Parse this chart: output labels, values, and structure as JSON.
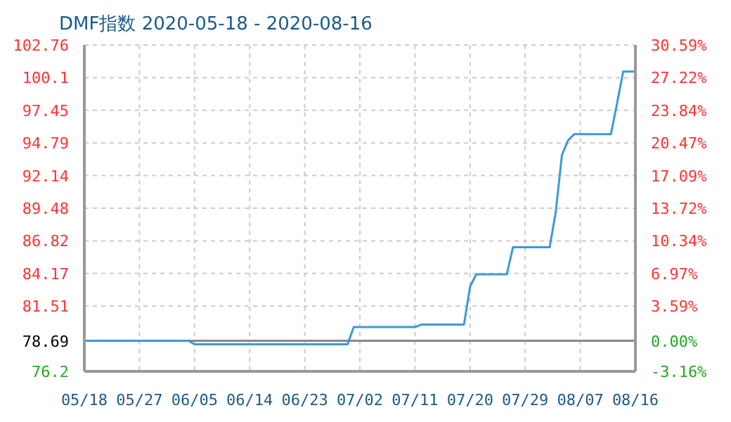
{
  "chart_data": {
    "type": "line",
    "title": "DMF指数 2020-05-18 - 2020-08-16",
    "x": [
      "2020-05-18",
      "2020-06-04",
      "2020-06-05",
      "2020-06-30",
      "2020-07-01",
      "2020-07-11",
      "2020-07-12",
      "2020-07-19",
      "2020-07-20",
      "2020-07-21",
      "2020-07-26",
      "2020-07-27",
      "2020-08-02",
      "2020-08-03",
      "2020-08-04",
      "2020-08-05",
      "2020-08-06",
      "2020-08-12",
      "2020-08-13",
      "2020-08-14",
      "2020-08-16"
    ],
    "series": [
      {
        "color": "#3a9ad9",
        "values": [
          78.69,
          78.69,
          78.4,
          78.4,
          79.8,
          79.8,
          80.0,
          80.0,
          83.1,
          84.1,
          84.1,
          86.3,
          86.3,
          89.2,
          93.8,
          95.0,
          95.5,
          95.5,
          98.0,
          100.6,
          100.6
        ]
      }
    ],
    "xlim": [
      "2020-05-18",
      "2020-08-16"
    ],
    "xticks": [
      {
        "value": "2020-05-18",
        "label": "05/18"
      },
      {
        "value": "2020-05-27",
        "label": "05/27"
      },
      {
        "value": "2020-06-05",
        "label": "06/05"
      },
      {
        "value": "2020-06-14",
        "label": "06/14"
      },
      {
        "value": "2020-06-23",
        "label": "06/23"
      },
      {
        "value": "2020-07-02",
        "label": "07/02"
      },
      {
        "value": "2020-07-11",
        "label": "07/11"
      },
      {
        "value": "2020-07-20",
        "label": "07/20"
      },
      {
        "value": "2020-07-29",
        "label": "07/29"
      },
      {
        "value": "2020-08-07",
        "label": "08/07"
      },
      {
        "value": "2020-08-16",
        "label": "08/16"
      }
    ],
    "ylim": [
      76.2,
      102.76
    ],
    "yticks": [
      76.2,
      78.69,
      81.51,
      84.17,
      86.82,
      89.48,
      92.14,
      94.79,
      97.45,
      100.1,
      102.76
    ],
    "y2lim": [
      -3.16,
      30.59
    ],
    "y2ticks": [
      {
        "value": -3.16,
        "label": "-3.16%"
      },
      {
        "value": 0,
        "label": "0.00%"
      },
      {
        "value": 3.59,
        "label": "3.59%"
      },
      {
        "value": 6.97,
        "label": "6.97%"
      },
      {
        "value": 10.34,
        "label": "10.34%"
      },
      {
        "value": 13.72,
        "label": "13.72%"
      },
      {
        "value": 17.09,
        "label": "17.09%"
      },
      {
        "value": 20.47,
        "label": "20.47%"
      },
      {
        "value": 23.84,
        "label": "23.84%"
      },
      {
        "value": 27.22,
        "label": "27.22%"
      },
      {
        "value": 30.59,
        "label": "30.59%"
      }
    ],
    "ref_lines": [
      {
        "axis": "y",
        "value": 78.69,
        "color": "#888888"
      }
    ],
    "grid": true,
    "line_style": "solid",
    "marker": "none"
  }
}
